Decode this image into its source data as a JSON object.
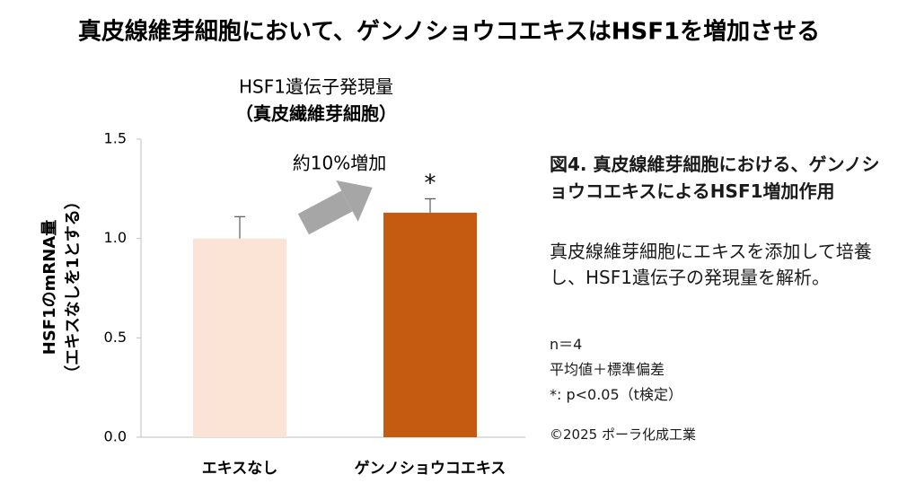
{
  "chart_data": {
    "type": "bar",
    "title": "真皮線維芽細胞において、ゲンノショウコエキスはHSF1を増加させる",
    "subtitle": [
      "HSF1遺伝子発現量",
      "（真皮繊維芽細胞）"
    ],
    "y_label": [
      "HSF1のmRNA量",
      "（エキスなしを1とする）"
    ],
    "categories": [
      "エキスなし",
      "ゲンノショウコエキス"
    ],
    "values": [
      1.0,
      1.13
    ],
    "error": [
      0.11,
      0.07
    ],
    "colors": [
      "#fbe3d6",
      "#c55a11"
    ],
    "ylim": [
      0,
      1.5
    ],
    "yticks": [
      {
        "value": 0,
        "label": "0.0"
      },
      0.5,
      {
        "value": 1,
        "label": "1.0"
      },
      1.5
    ],
    "annotation": "約10%増加",
    "significance": "*"
  },
  "side_panel": {
    "caption_title": "図4. 真皮線維芽細胞における、ゲンノショウコエキスによるHSF1増加作用",
    "description": "真皮線維芽細胞にエキスを添加して培養し、HSF1遺伝子の発現量を解析。",
    "notes": [
      "n＝4",
      "平均値＋標準偏差",
      "*: p<0.05（t検定）"
    ],
    "copyright": "©2025 ポーラ化成工業"
  }
}
